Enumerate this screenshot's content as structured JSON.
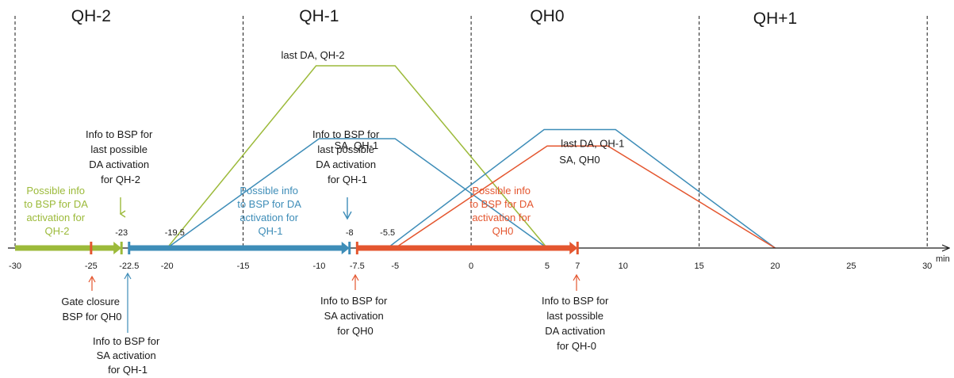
{
  "colors": {
    "green": "#9CBA3A",
    "blue": "#3E8DB8",
    "orange": "#E4562F",
    "axis": "#1a1a1a"
  },
  "quarter_hours": [
    {
      "label": "QH-2",
      "center": -25
    },
    {
      "label": "QH-1",
      "center": -10
    },
    {
      "label": "QH0",
      "center": 5
    },
    {
      "label": "QH+1",
      "center": 20
    }
  ],
  "boundaries": [
    -30,
    -15,
    0,
    15,
    30
  ],
  "axis": {
    "unit": "min",
    "ticks": [
      -30,
      -25,
      -22.5,
      -20,
      -15,
      -10,
      -7.5,
      -5,
      0,
      5,
      7,
      10,
      15,
      20,
      25,
      30
    ],
    "tick_labels": [
      "-30",
      "-25",
      "-22.5",
      "-20",
      "-15",
      "-10",
      "-7.5",
      "-5",
      "0",
      "5",
      "7",
      "10",
      "15",
      "20",
      "25",
      "30"
    ]
  },
  "bars": [
    {
      "color": "green",
      "from": -30,
      "to": -23
    },
    {
      "color": "blue",
      "from": -22.5,
      "to": -8
    },
    {
      "color": "orange",
      "from": -7.5,
      "to": 7
    }
  ],
  "markers": [
    {
      "color": "orange",
      "at": -25
    },
    {
      "color": "green",
      "at": -23
    },
    {
      "color": "blue",
      "at": -22.5
    },
    {
      "color": "blue",
      "at": -8
    },
    {
      "color": "orange",
      "at": -7.5
    },
    {
      "color": "orange",
      "at": 7
    }
  ],
  "above_values": [
    {
      "at": -23,
      "text": "-23"
    },
    {
      "at": -19.5,
      "text": "-19.5"
    },
    {
      "at": -8,
      "text": "-8"
    },
    {
      "at": -5.5,
      "text": "-5.5"
    }
  ],
  "profiles": [
    {
      "name": "last DA, QH-2",
      "color": "green",
      "points": [
        [
          -20,
          0
        ],
        [
          -10.2,
          1
        ],
        [
          -5,
          1
        ],
        [
          5,
          0
        ]
      ]
    },
    {
      "name": "SA, QH-1",
      "color": "blue",
      "points": [
        [
          -20,
          0
        ],
        [
          -10,
          0.6
        ],
        [
          -5,
          0.6
        ],
        [
          5,
          0
        ]
      ]
    },
    {
      "name": "last DA, QH-1",
      "color": "blue",
      "points": [
        [
          -5.5,
          0
        ],
        [
          4.8,
          0.65
        ],
        [
          9.5,
          0.65
        ],
        [
          20,
          0
        ]
      ]
    },
    {
      "name": "SA, QH0",
      "color": "orange",
      "points": [
        [
          -5,
          0
        ],
        [
          5,
          0.56
        ],
        [
          9,
          0.56
        ],
        [
          20,
          0
        ]
      ]
    }
  ],
  "texts": {
    "green_possible": [
      "Possible info",
      "to BSP for DA",
      "activation for",
      "QH-2"
    ],
    "blue_possible": [
      "Possible info",
      "to BSP for DA",
      "activation for",
      "QH-1"
    ],
    "orange_possible": [
      "Possible info",
      "to BSP for DA",
      "activation for",
      "QH0"
    ],
    "info_da_qh2": [
      "Info to BSP for",
      "last possible",
      "DA activation",
      "for QH-2"
    ],
    "info_da_qh1": [
      "Info to BSP for",
      "last possible",
      "DA activation",
      "for QH-1"
    ],
    "gate_closure": [
      "Gate closure",
      "BSP for QH0"
    ],
    "info_sa_qh1": [
      "Info to BSP for",
      "SA activation",
      "for QH-1"
    ],
    "info_sa_qh0": [
      "Info to BSP for",
      "SA activation",
      "for QH0"
    ],
    "info_da_qh0_last": [
      "Info to BSP for",
      "last possible",
      "DA activation",
      "for QH-0"
    ]
  }
}
